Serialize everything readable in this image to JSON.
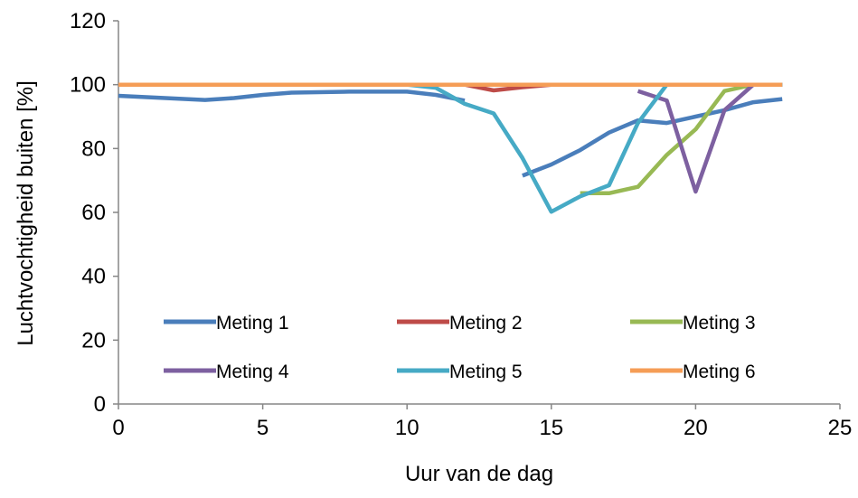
{
  "chart_data": {
    "type": "line",
    "xlabel": "Uur van de dag",
    "ylabel": "Luchtvochtigheid buiten [%]",
    "xlim": [
      0,
      25
    ],
    "ylim": [
      0,
      120
    ],
    "xticks": [
      0,
      5,
      10,
      15,
      20,
      25
    ],
    "yticks": [
      0,
      20,
      40,
      60,
      80,
      100,
      120
    ],
    "grid": false,
    "legend_position": "inside-bottom",
    "series": [
      {
        "name": "Meting 1",
        "color": "#4A7EBB",
        "points": [
          [
            0,
            96.5
          ],
          [
            3,
            95.2
          ],
          [
            4,
            95.8
          ],
          [
            5,
            96.8
          ],
          [
            6,
            97.5
          ],
          [
            8,
            97.8
          ],
          [
            10,
            97.8
          ],
          [
            11,
            96.8
          ],
          [
            12,
            95.0
          ],
          [
            null,
            null
          ],
          [
            14,
            71.5
          ],
          [
            15,
            75.0
          ],
          [
            16,
            79.5
          ],
          [
            17,
            85.0
          ],
          [
            18,
            88.8
          ],
          [
            19,
            88.0
          ],
          [
            20,
            90.0
          ],
          [
            21,
            92.0
          ],
          [
            22,
            94.5
          ],
          [
            23,
            95.5
          ]
        ]
      },
      {
        "name": "Meting 2",
        "color": "#BE4B48",
        "points": [
          [
            12,
            100
          ],
          [
            13,
            98.2
          ],
          [
            14,
            99.2
          ],
          [
            15,
            100
          ],
          [
            23,
            100
          ]
        ]
      },
      {
        "name": "Meting 3",
        "color": "#98B954",
        "points": [
          [
            16,
            66.0
          ],
          [
            17,
            66.0
          ],
          [
            18,
            68.0
          ],
          [
            19,
            78.0
          ],
          [
            20,
            86.0
          ],
          [
            21,
            98.0
          ],
          [
            22,
            100
          ],
          [
            23,
            100
          ]
        ]
      },
      {
        "name": "Meting 4",
        "color": "#7D60A0",
        "points": [
          [
            18,
            98.0
          ],
          [
            19,
            95.0
          ],
          [
            20,
            66.5
          ],
          [
            21,
            92.0
          ],
          [
            22,
            100
          ],
          [
            23,
            100
          ]
        ]
      },
      {
        "name": "Meting 5",
        "color": "#46AAC5",
        "points": [
          [
            8,
            100
          ],
          [
            10,
            100
          ],
          [
            11,
            99.0
          ],
          [
            12,
            94.0
          ],
          [
            13,
            91.0
          ],
          [
            14,
            77.0
          ],
          [
            15,
            60.2
          ],
          [
            16,
            65.0
          ],
          [
            17,
            68.5
          ],
          [
            18,
            88.0
          ],
          [
            19,
            100
          ],
          [
            20,
            100
          ],
          [
            23,
            100
          ]
        ]
      },
      {
        "name": "Meting 6",
        "color": "#F59D56",
        "points": [
          [
            0,
            100
          ],
          [
            23,
            100
          ]
        ]
      }
    ]
  }
}
